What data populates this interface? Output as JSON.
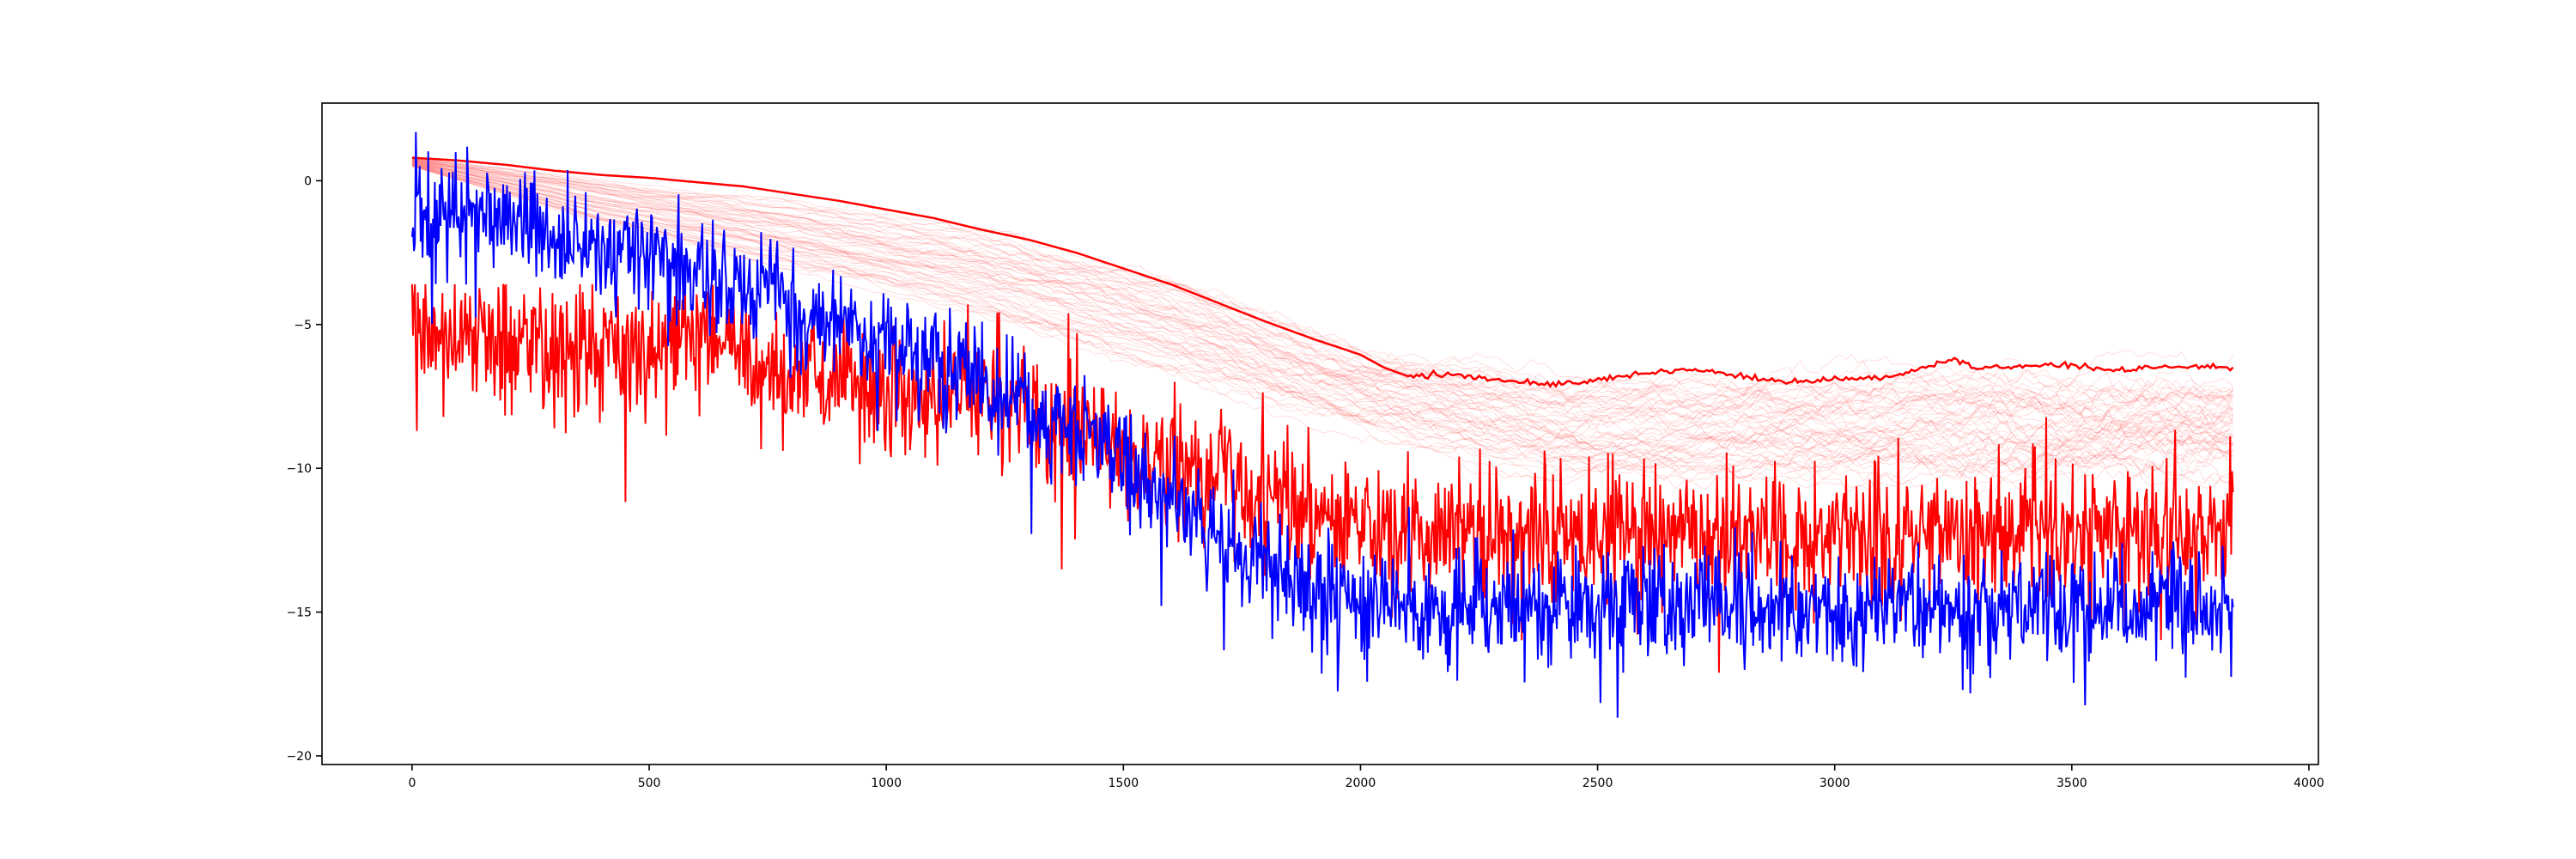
{
  "chart_data": {
    "type": "line",
    "title": "",
    "xlabel": "",
    "ylabel": "",
    "xlim": [
      -190,
      4020
    ],
    "ylim": [
      -20.3,
      2.7
    ],
    "grid": false,
    "legend": "none",
    "x_ticks": [
      0,
      500,
      1000,
      1500,
      2000,
      2500,
      3000,
      3500,
      4000
    ],
    "x_tick_labels": [
      "0",
      "500",
      "1000",
      "1500",
      "2000",
      "2500",
      "3000",
      "3500",
      "4000"
    ],
    "y_ticks": [
      0,
      -5,
      -10,
      -15,
      -20
    ],
    "y_tick_labels": [
      "0",
      "−5",
      "−10",
      "−15",
      "−20"
    ],
    "x_range": [
      0,
      3840
    ],
    "faint_band": {
      "color": "#ff0000",
      "count": 55,
      "opacity": 0.13,
      "note_x": [
        0,
        400,
        800,
        1200,
        1600,
        2000,
        2400,
        2800,
        3200,
        3840
      ],
      "upper": [
        0.8,
        0.0,
        -0.8,
        -1.8,
        -3.5,
        -6.0,
        -7.0,
        -7.0,
        -6.8,
        -7.0
      ],
      "lower": [
        0.5,
        -1.5,
        -3.0,
        -4.5,
        -6.5,
        -8.5,
        -10.2,
        -10.3,
        -10.2,
        -10.0
      ]
    },
    "series": [
      {
        "color": "#ff0000",
        "style": "smooth-envelope",
        "x": [
          0,
          100,
          200,
          300,
          400,
          500,
          600,
          700,
          800,
          900,
          1000,
          1100,
          1200,
          1300,
          1400,
          1500,
          1600,
          1700,
          1800,
          1900,
          2000,
          2050,
          2100,
          2200,
          2300,
          2400,
          2500,
          2600,
          2700,
          2800,
          2900,
          3000,
          3100,
          3200,
          3250,
          3300,
          3400,
          3500,
          3600,
          3700,
          3840
        ],
        "values": [
          0.8,
          0.7,
          0.55,
          0.35,
          0.2,
          0.1,
          -0.05,
          -0.2,
          -0.45,
          -0.7,
          -1.0,
          -1.3,
          -1.7,
          -2.05,
          -2.5,
          -3.05,
          -3.6,
          -4.25,
          -4.9,
          -5.5,
          -6.05,
          -6.5,
          -6.8,
          -6.75,
          -6.95,
          -7.1,
          -6.9,
          -6.7,
          -6.55,
          -6.8,
          -7.0,
          -6.9,
          -6.85,
          -6.45,
          -6.2,
          -6.55,
          -6.45,
          -6.4,
          -6.6,
          -6.45,
          -6.5
        ]
      },
      {
        "color": "#ff0000",
        "style": "noisy",
        "x": [
          0,
          100,
          200,
          300,
          400,
          500,
          600,
          700,
          800,
          900,
          1000,
          1100,
          1200,
          1300,
          1400,
          1500,
          1600,
          1700,
          1800,
          1900,
          2000,
          2200,
          2400,
          2600,
          2800,
          3000,
          3200,
          3400,
          3600,
          3840
        ],
        "values": [
          -5.0,
          -5.5,
          -5.6,
          -5.5,
          -5.7,
          -6.0,
          -5.4,
          -6.3,
          -6.7,
          -7.0,
          -7.3,
          -7.6,
          -7.5,
          -8.0,
          -8.8,
          -9.3,
          -9.8,
          -10.2,
          -11.0,
          -11.6,
          -12.3,
          -12.3,
          -12.2,
          -12.2,
          -12.2,
          -12.2,
          -12.1,
          -12.1,
          -12.1,
          -12.1
        ],
        "amplitude": [
          1.2,
          1.1,
          1.1,
          1.1,
          1.1,
          1.1,
          1.1,
          1.1,
          1.1,
          1.1,
          1.1,
          1.1,
          1.1,
          1.1,
          1.2,
          1.1,
          1.1,
          1.1,
          1.2,
          1.2,
          1.2,
          1.2,
          1.2,
          1.2,
          1.2,
          1.2,
          1.2,
          1.2,
          1.2,
          1.2
        ],
        "min": -18.4,
        "max": -3.6
      },
      {
        "color": "#0000ff",
        "style": "noisy",
        "x": [
          0,
          100,
          200,
          300,
          400,
          500,
          600,
          700,
          800,
          900,
          1000,
          1100,
          1200,
          1300,
          1400,
          1500,
          1600,
          1700,
          1800,
          1900,
          2000,
          2200,
          2400,
          2600,
          2800,
          3000,
          3200,
          3400,
          3600,
          3840
        ],
        "values": [
          -1.3,
          -1.4,
          -1.6,
          -1.9,
          -2.3,
          -2.7,
          -3.2,
          -3.8,
          -4.3,
          -4.9,
          -5.6,
          -6.3,
          -7.0,
          -7.9,
          -8.9,
          -9.9,
          -11.0,
          -12.2,
          -13.4,
          -14.3,
          -14.7,
          -14.8,
          -14.8,
          -14.8,
          -14.8,
          -14.8,
          -14.8,
          -14.8,
          -14.8,
          -14.8
        ],
        "amplitude": [
          1.0,
          1.0,
          1.0,
          1.0,
          1.0,
          1.0,
          1.0,
          1.0,
          1.0,
          1.0,
          1.0,
          1.0,
          1.0,
          1.0,
          1.0,
          1.0,
          1.0,
          1.0,
          1.0,
          1.0,
          1.0,
          1.0,
          1.0,
          1.0,
          1.0,
          1.0,
          1.0,
          1.0,
          1.0,
          1.0
        ],
        "min": -19.2,
        "max": 1.7
      }
    ]
  }
}
